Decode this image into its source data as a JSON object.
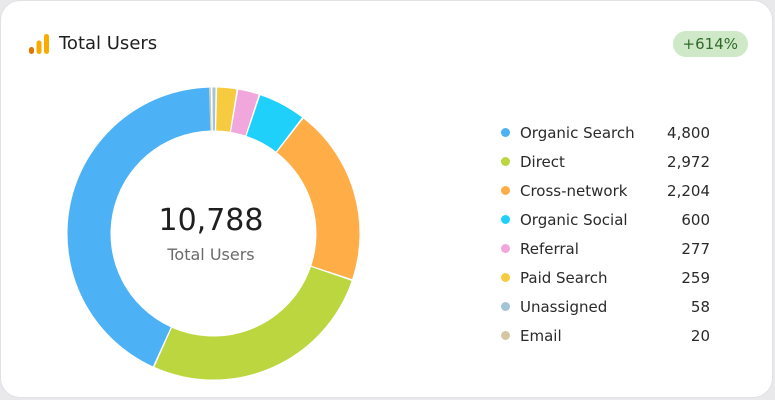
{
  "header": {
    "title": "Total Users",
    "badge": "+614%",
    "logo_icon": "analytics-bars-icon"
  },
  "chart_data": {
    "type": "pie",
    "variant": "donut",
    "center_value": "10,788",
    "center_label": "Total Users",
    "legend_position": "right",
    "slices": [
      {
        "name": "Organic Search",
        "value": 4800,
        "label": "4,800",
        "color": "#4db2f5"
      },
      {
        "name": "Direct",
        "value": 2972,
        "label": "2,972",
        "color": "#bcd63f"
      },
      {
        "name": "Cross-network",
        "value": 2204,
        "label": "2,204",
        "color": "#ffad47"
      },
      {
        "name": "Organic Social",
        "value": 600,
        "label": "600",
        "color": "#1fd0fa"
      },
      {
        "name": "Referral",
        "value": 277,
        "label": "277",
        "color": "#f2a7dc"
      },
      {
        "name": "Paid Search",
        "value": 259,
        "label": "259",
        "color": "#f7cb3f"
      },
      {
        "name": "Unassigned",
        "value": 58,
        "label": "58",
        "color": "#a3c4d6"
      },
      {
        "name": "Email",
        "value": 20,
        "label": "20",
        "color": "#d6c7a4"
      }
    ]
  },
  "colors": {
    "logo_orange": "#f9ab00",
    "logo_dark_orange": "#e37400",
    "badge_bg": "#cfe8c8",
    "badge_text": "#2f6b2a"
  }
}
